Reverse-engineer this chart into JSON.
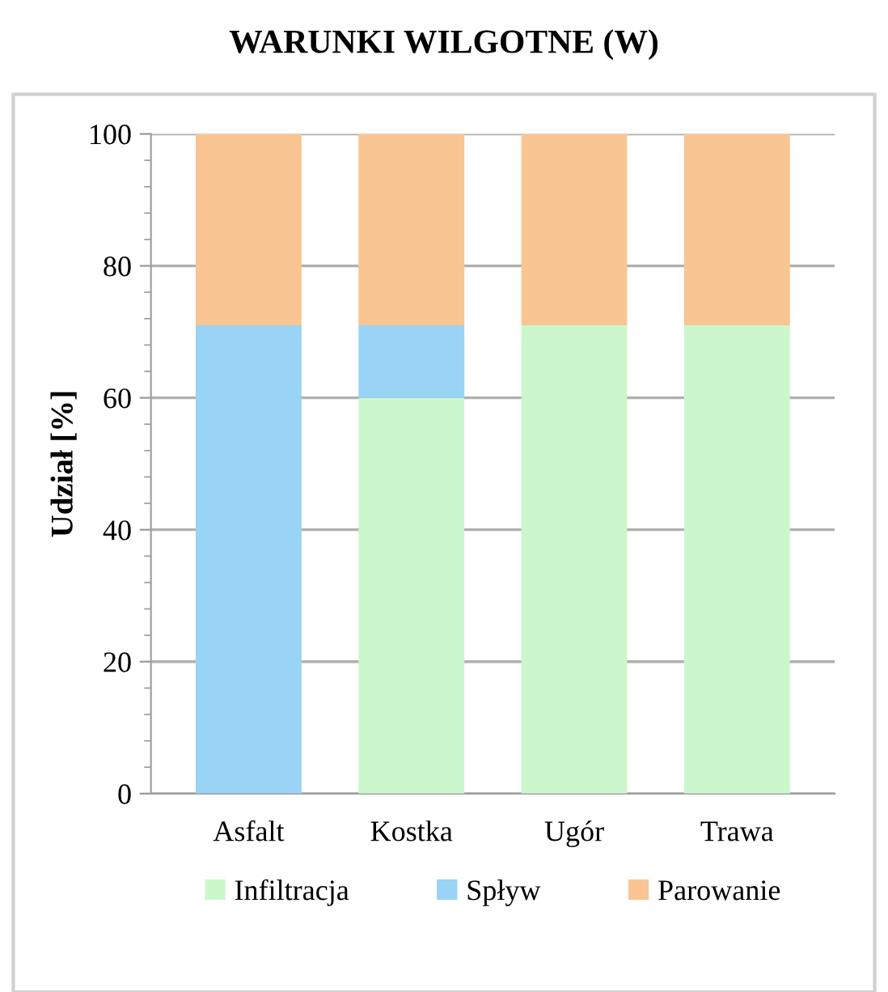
{
  "chart_data": {
    "type": "bar",
    "stacked": true,
    "title": "WARUNKI WILGOTNE (W)",
    "ylabel": "Udział [%]",
    "categories": [
      "Asfalt",
      "Kostka",
      "Ugór",
      "Trawa"
    ],
    "series": [
      {
        "name": "Infiltracja",
        "color": "#ccf7cc",
        "values": [
          0,
          60,
          71,
          71
        ]
      },
      {
        "name": "Spływ",
        "color": "#99d3f5",
        "values": [
          71,
          11,
          0,
          0
        ]
      },
      {
        "name": "Parowanie",
        "color": "#f9c593",
        "values": [
          29,
          29,
          29,
          29
        ]
      }
    ],
    "ylim": [
      0,
      100
    ],
    "yticks": [
      0,
      20,
      40,
      60,
      80,
      100
    ],
    "grid": "y",
    "legend": "bottom"
  }
}
